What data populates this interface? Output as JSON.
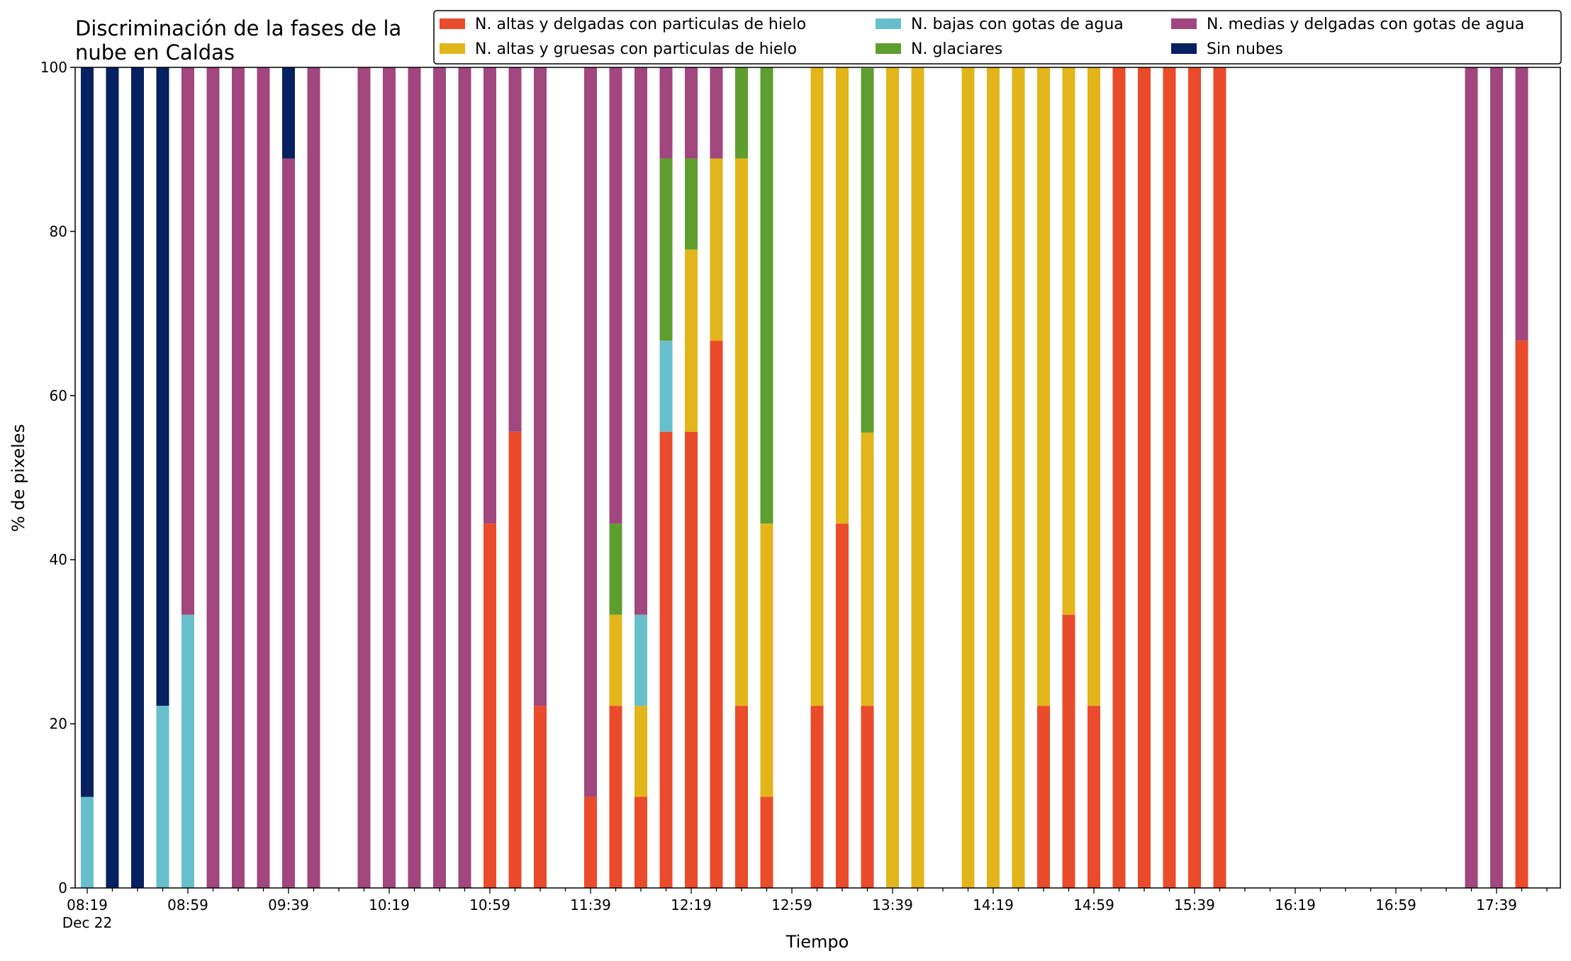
{
  "chart_data": {
    "type": "bar",
    "stacked": true,
    "title_lines": [
      "Discriminación de la fases de la",
      "nube en Caldas"
    ],
    "xlabel": "Tiempo",
    "ylabel": "% de pixeles",
    "ylim": [
      0,
      100
    ],
    "yticks": [
      "0",
      "20",
      "40",
      "60",
      "80",
      "100"
    ],
    "xtick_labels": [
      "08:19",
      "08:59",
      "09:39",
      "10:19",
      "10:59",
      "11:39",
      "12:19",
      "12:59",
      "13:39",
      "14:19",
      "14:59",
      "15:39",
      "16:19",
      "16:59",
      "17:39"
    ],
    "xtick_date": "Dec 22",
    "x_start": "08:19",
    "x_step_minutes": 10,
    "x_count": 59,
    "legend_position": "top-right",
    "series": [
      {
        "name": "N. altas y delgadas con particulas de hielo",
        "color": "#ea4b2b"
      },
      {
        "name": "N. altas y gruesas con particulas de hielo",
        "color": "#e2b51a"
      },
      {
        "name": "N. bajas con gotas de agua",
        "color": "#68bfcc"
      },
      {
        "name": "N. glaciares",
        "color": "#5e9e2f"
      },
      {
        "name": "N. medias y delgadas con gotas de agua",
        "color": "#a1467e"
      },
      {
        "name": "Sin nubes",
        "color": "#06215f"
      }
    ],
    "bars": [
      {
        "time": "08:19",
        "values": [
          0,
          0,
          11.1,
          0,
          0,
          88.9
        ]
      },
      {
        "time": "08:29",
        "values": [
          0,
          0,
          0,
          0,
          0,
          100
        ]
      },
      {
        "time": "08:39",
        "values": [
          0,
          0,
          0,
          0,
          0,
          100
        ]
      },
      {
        "time": "08:49",
        "values": [
          0,
          0,
          22.2,
          0,
          0,
          77.8
        ]
      },
      {
        "time": "08:59",
        "values": [
          0,
          0,
          33.3,
          0,
          66.7,
          0
        ]
      },
      {
        "time": "09:09",
        "values": [
          0,
          0,
          0,
          0,
          100,
          0
        ]
      },
      {
        "time": "09:19",
        "values": [
          0,
          0,
          0,
          0,
          100,
          0
        ]
      },
      {
        "time": "09:29",
        "values": [
          0,
          0,
          0,
          0,
          100,
          0
        ]
      },
      {
        "time": "09:39",
        "values": [
          0,
          0,
          0,
          0,
          88.9,
          11.1
        ]
      },
      {
        "time": "09:49",
        "values": [
          0,
          0,
          0,
          0,
          100,
          0
        ]
      },
      {
        "time": "10:09",
        "values": [
          0,
          0,
          0,
          0,
          100,
          0
        ]
      },
      {
        "time": "10:19",
        "values": [
          0,
          0,
          0,
          0,
          100,
          0
        ]
      },
      {
        "time": "10:29",
        "values": [
          0,
          0,
          0,
          0,
          100,
          0
        ]
      },
      {
        "time": "10:39",
        "values": [
          0,
          0,
          0,
          0,
          100,
          0
        ]
      },
      {
        "time": "10:49",
        "values": [
          0,
          0,
          0,
          0,
          100,
          0
        ]
      },
      {
        "time": "10:59",
        "values": [
          44.4,
          0,
          0,
          0,
          55.6,
          0
        ]
      },
      {
        "time": "11:09",
        "values": [
          55.6,
          0,
          0,
          0,
          44.4,
          0
        ]
      },
      {
        "time": "11:19",
        "values": [
          22.2,
          0,
          0,
          0,
          77.8,
          0
        ]
      },
      {
        "time": "11:39",
        "values": [
          11.1,
          0,
          0,
          0,
          88.9,
          0
        ]
      },
      {
        "time": "11:49",
        "values": [
          22.2,
          11.1,
          0,
          11.1,
          55.6,
          0
        ]
      },
      {
        "time": "11:59",
        "values": [
          11.1,
          11.1,
          11.1,
          0,
          66.7,
          0
        ]
      },
      {
        "time": "12:09",
        "values": [
          55.6,
          0,
          11.1,
          22.2,
          11.1,
          0
        ]
      },
      {
        "time": "12:19",
        "values": [
          55.6,
          22.2,
          0,
          11.1,
          11.1,
          0
        ]
      },
      {
        "time": "12:29",
        "values": [
          66.7,
          22.2,
          0,
          0,
          11.1,
          0
        ]
      },
      {
        "time": "12:39",
        "values": [
          22.2,
          66.7,
          0,
          11.1,
          0,
          0
        ]
      },
      {
        "time": "12:49",
        "values": [
          11.1,
          33.3,
          0,
          55.6,
          0,
          0
        ]
      },
      {
        "time": "13:09",
        "values": [
          22.2,
          77.8,
          0,
          0,
          0,
          0
        ]
      },
      {
        "time": "13:19",
        "values": [
          44.4,
          55.6,
          0,
          0,
          0,
          0
        ]
      },
      {
        "time": "13:29",
        "values": [
          22.2,
          33.3,
          0,
          44.4,
          0,
          0
        ]
      },
      {
        "time": "13:39",
        "values": [
          0,
          100,
          0,
          0,
          0,
          0
        ]
      },
      {
        "time": "13:49",
        "values": [
          0,
          100,
          0,
          0,
          0,
          0
        ]
      },
      {
        "time": "14:09",
        "values": [
          0,
          100,
          0,
          0,
          0,
          0
        ]
      },
      {
        "time": "14:19",
        "values": [
          0,
          100,
          0,
          0,
          0,
          0
        ]
      },
      {
        "time": "14:29",
        "values": [
          0,
          100,
          0,
          0,
          0,
          0
        ]
      },
      {
        "time": "14:39",
        "values": [
          22.2,
          77.8,
          0,
          0,
          0,
          0
        ]
      },
      {
        "time": "14:49",
        "values": [
          33.3,
          66.7,
          0,
          0,
          0,
          0
        ]
      },
      {
        "time": "14:59",
        "values": [
          22.2,
          77.8,
          0,
          0,
          0,
          0
        ]
      },
      {
        "time": "15:09",
        "values": [
          100,
          0,
          0,
          0,
          0,
          0
        ]
      },
      {
        "time": "15:19",
        "values": [
          100,
          0,
          0,
          0,
          0,
          0
        ]
      },
      {
        "time": "15:29",
        "values": [
          100,
          0,
          0,
          0,
          0,
          0
        ]
      },
      {
        "time": "15:39",
        "values": [
          100,
          0,
          0,
          0,
          0,
          0
        ]
      },
      {
        "time": "15:49",
        "values": [
          100,
          0,
          0,
          0,
          0,
          0
        ]
      },
      {
        "time": "17:29",
        "values": [
          0,
          0,
          0,
          0,
          100,
          0
        ]
      },
      {
        "time": "17:39",
        "values": [
          0,
          0,
          0,
          0,
          100,
          0
        ]
      },
      {
        "time": "17:49",
        "values": [
          66.7,
          0,
          0,
          0,
          33.3,
          0
        ]
      }
    ]
  }
}
